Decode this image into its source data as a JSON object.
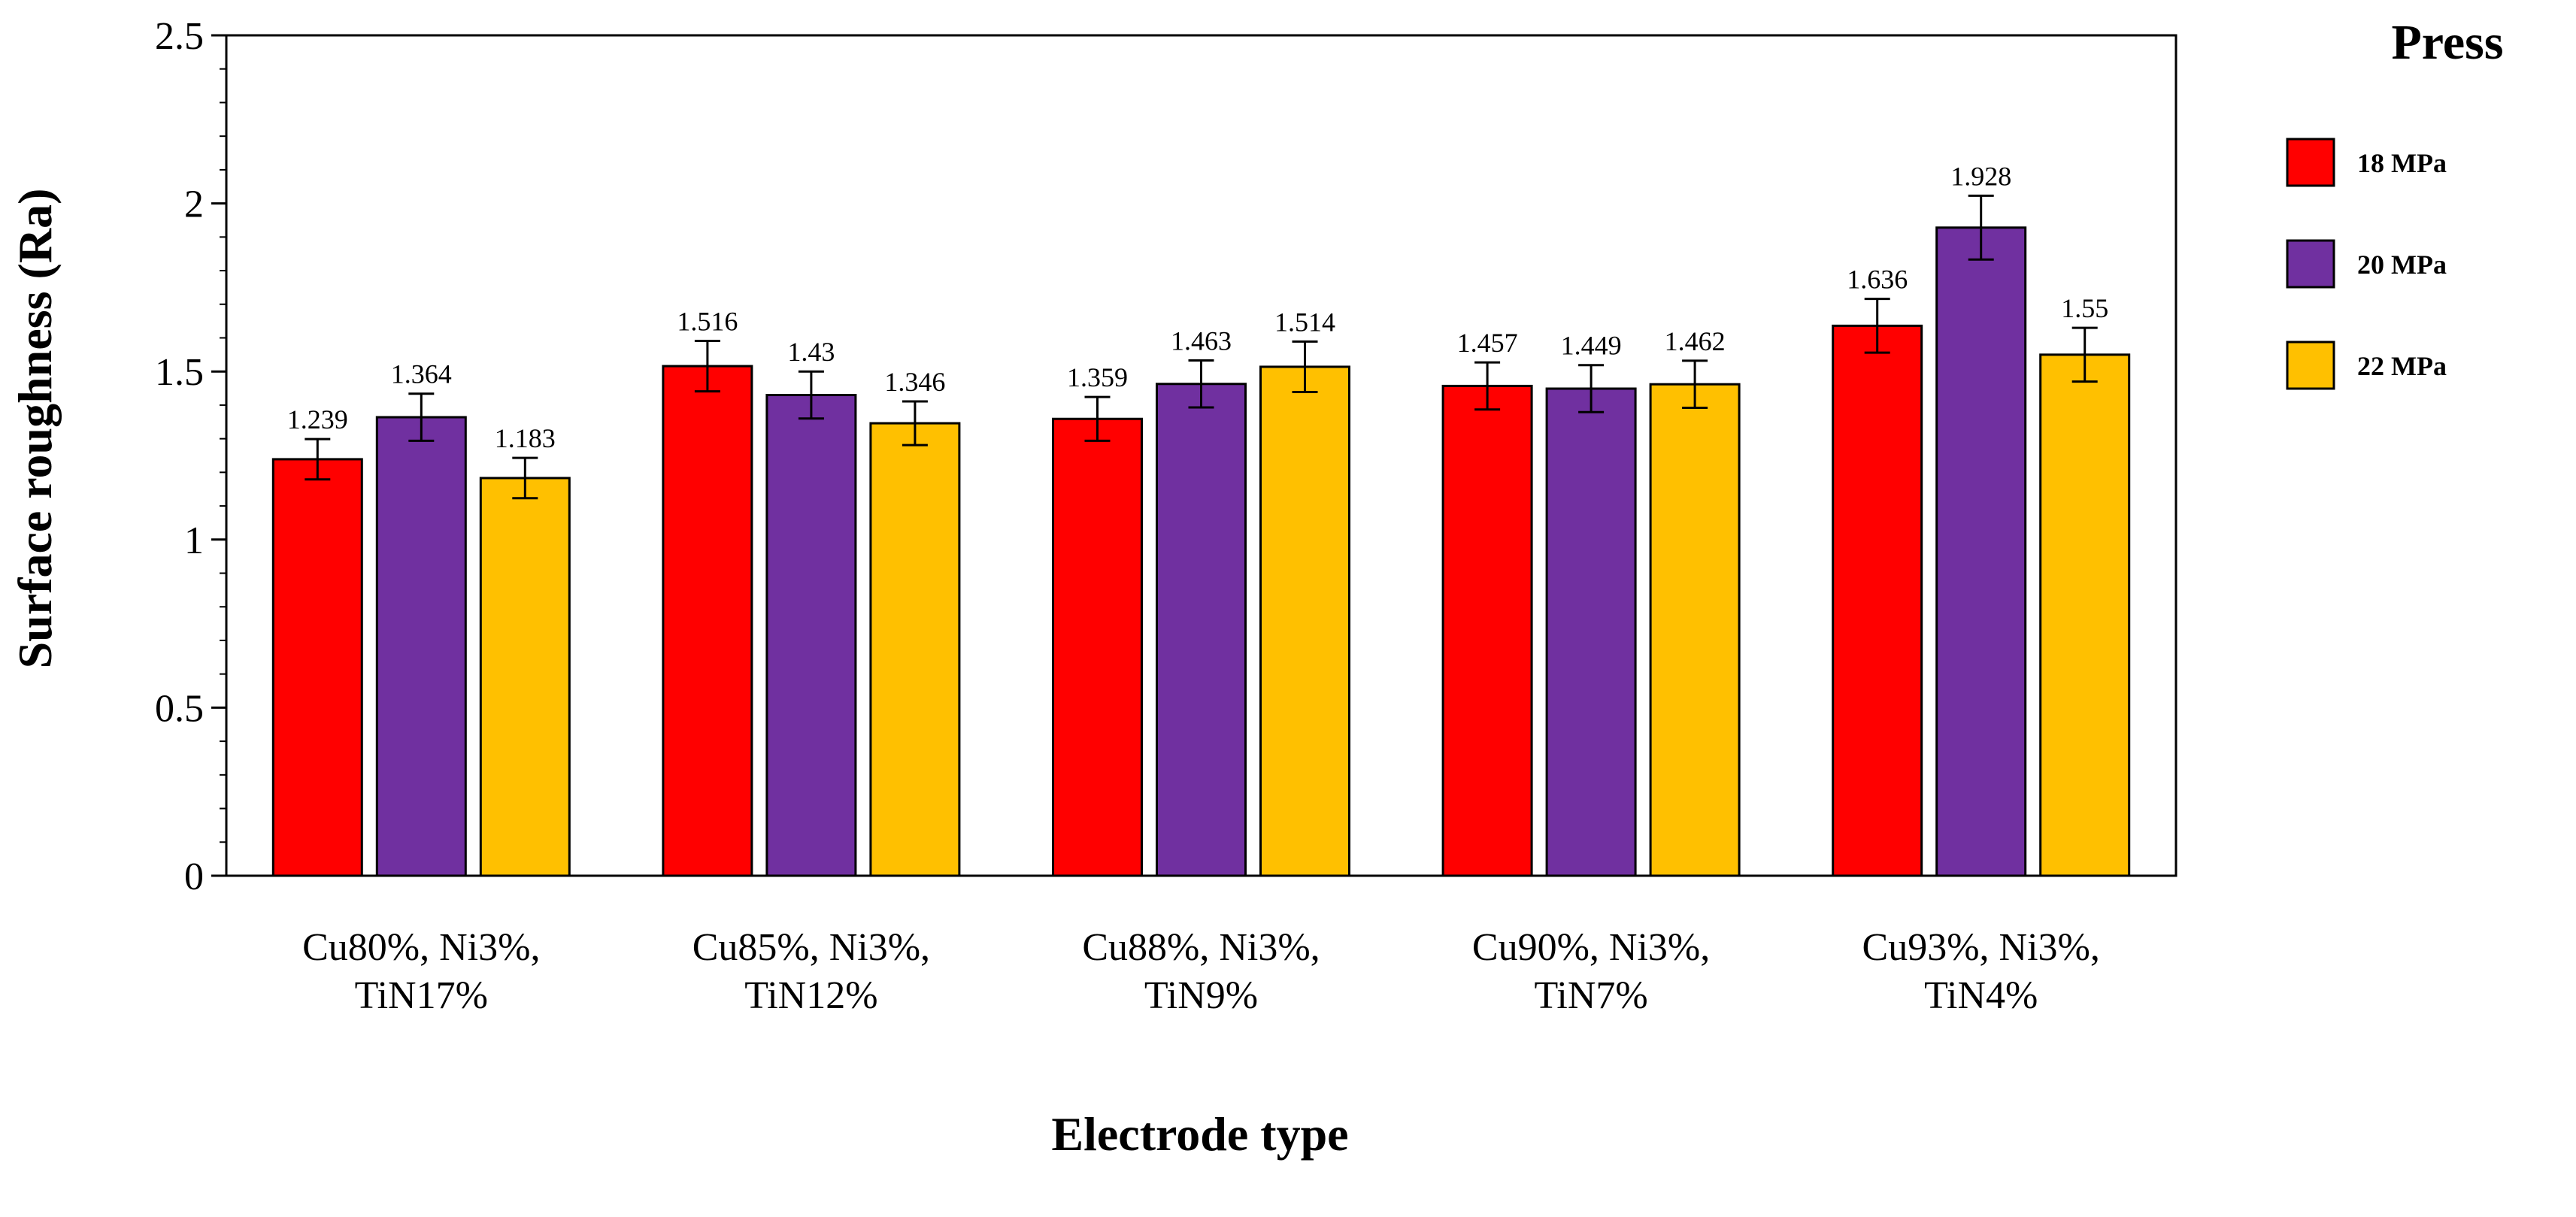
{
  "chart_data": {
    "type": "bar",
    "title": "",
    "xlabel": "Electrode type",
    "ylabel": "Surface roughness  (Ra)",
    "ylim": [
      0,
      2.5
    ],
    "y_major_ticks": [
      0,
      0.5,
      1,
      1.5,
      2,
      2.5
    ],
    "y_tick_labels": [
      "0",
      "0.5",
      "1",
      "1.5",
      "2",
      "2.5"
    ],
    "y_minor_step": 0.1,
    "grid": false,
    "categories": [
      [
        "Cu80%, Ni3%,",
        "TiN17%"
      ],
      [
        "Cu85%, Ni3%,",
        "TiN12%"
      ],
      [
        "Cu88%, Ni3%,",
        "TiN9%"
      ],
      [
        "Cu90%, Ni3%,",
        "TiN7%"
      ],
      [
        "Cu93%, Ni3%,",
        "TiN4%"
      ]
    ],
    "legend": {
      "title": "Press",
      "position": "right"
    },
    "series": [
      {
        "name": "18 MPa",
        "color": "#FF0000",
        "values": [
          1.239,
          1.516,
          1.359,
          1.457,
          1.636
        ],
        "labels": [
          "1.239",
          "1.516",
          "1.359",
          "1.457",
          "1.636"
        ],
        "error": [
          0.06,
          0.075,
          0.065,
          0.07,
          0.08
        ]
      },
      {
        "name": "20 MPa",
        "color": "#7030A0",
        "values": [
          1.364,
          1.43,
          1.463,
          1.449,
          1.928
        ],
        "labels": [
          "1.364",
          "1.43",
          "1.463",
          "1.449",
          "1.928"
        ],
        "error": [
          0.07,
          0.07,
          0.07,
          0.07,
          0.095
        ]
      },
      {
        "name": "22 MPa",
        "color": "#FFC000",
        "values": [
          1.183,
          1.346,
          1.514,
          1.462,
          1.55
        ],
        "labels": [
          "1.183",
          "1.346",
          "1.514",
          "1.462",
          "1.55"
        ],
        "error": [
          0.06,
          0.065,
          0.075,
          0.07,
          0.08
        ]
      }
    ]
  }
}
